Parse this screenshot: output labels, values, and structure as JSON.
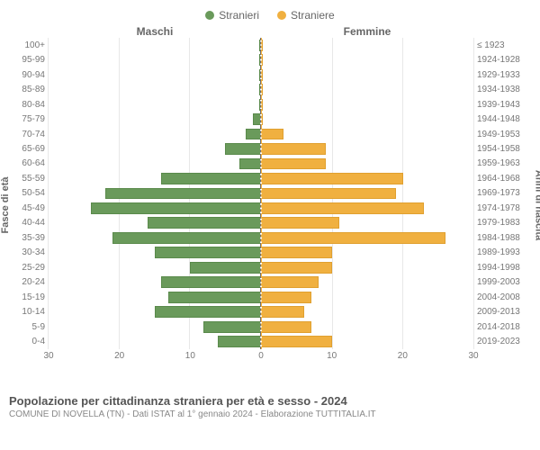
{
  "legend": {
    "male": {
      "label": "Stranieri",
      "color": "#6a9a5b"
    },
    "female": {
      "label": "Straniere",
      "color": "#f0b040"
    }
  },
  "headers": {
    "left": "Maschi",
    "right": "Femmine",
    "y_left_title": "Fasce di età",
    "y_right_title": "Anni di nascita"
  },
  "chart": {
    "type": "population-pyramid",
    "x_max": 30,
    "x_ticks": [
      0,
      10,
      20,
      30
    ],
    "bar_color_male": "#6a9a5b",
    "bar_border_male": "#5a8a4b",
    "bar_color_female": "#f0b040",
    "bar_border_female": "#e0a030",
    "background_color": "#ffffff",
    "grid_color": "#e8e8e8",
    "rows": [
      {
        "age": "100+",
        "birth": "≤ 1923",
        "m": 0,
        "f": 0
      },
      {
        "age": "95-99",
        "birth": "1924-1928",
        "m": 0,
        "f": 0
      },
      {
        "age": "90-94",
        "birth": "1929-1933",
        "m": 0,
        "f": 0
      },
      {
        "age": "85-89",
        "birth": "1934-1938",
        "m": 0,
        "f": 0
      },
      {
        "age": "80-84",
        "birth": "1939-1943",
        "m": 0,
        "f": 0
      },
      {
        "age": "75-79",
        "birth": "1944-1948",
        "m": 1,
        "f": 0
      },
      {
        "age": "70-74",
        "birth": "1949-1953",
        "m": 2,
        "f": 3
      },
      {
        "age": "65-69",
        "birth": "1954-1958",
        "m": 5,
        "f": 9
      },
      {
        "age": "60-64",
        "birth": "1959-1963",
        "m": 3,
        "f": 9
      },
      {
        "age": "55-59",
        "birth": "1964-1968",
        "m": 14,
        "f": 20
      },
      {
        "age": "50-54",
        "birth": "1969-1973",
        "m": 22,
        "f": 19
      },
      {
        "age": "45-49",
        "birth": "1974-1978",
        "m": 24,
        "f": 23
      },
      {
        "age": "40-44",
        "birth": "1979-1983",
        "m": 16,
        "f": 11
      },
      {
        "age": "35-39",
        "birth": "1984-1988",
        "m": 21,
        "f": 26
      },
      {
        "age": "30-34",
        "birth": "1989-1993",
        "m": 15,
        "f": 10
      },
      {
        "age": "25-29",
        "birth": "1994-1998",
        "m": 10,
        "f": 10
      },
      {
        "age": "20-24",
        "birth": "1999-2003",
        "m": 14,
        "f": 8
      },
      {
        "age": "15-19",
        "birth": "2004-2008",
        "m": 13,
        "f": 7
      },
      {
        "age": "10-14",
        "birth": "2009-2013",
        "m": 15,
        "f": 6
      },
      {
        "age": "5-9",
        "birth": "2014-2018",
        "m": 8,
        "f": 7
      },
      {
        "age": "0-4",
        "birth": "2019-2023",
        "m": 6,
        "f": 10
      }
    ]
  },
  "footer": {
    "title": "Popolazione per cittadinanza straniera per età e sesso - 2024",
    "sub": "COMUNE DI NOVELLA (TN) - Dati ISTAT al 1° gennaio 2024 - Elaborazione TUTTITALIA.IT"
  }
}
